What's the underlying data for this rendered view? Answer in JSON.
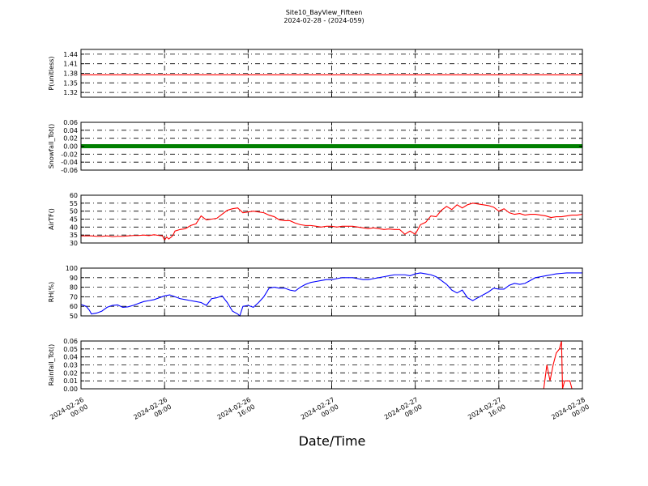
{
  "figure": {
    "title": "Site10_BayView_Fifteen",
    "subtitle": "2024-02-28 - (2024-059)",
    "xlabel": "Date/Time",
    "x_ticks": [
      "2024-02-26\n00:00",
      "2024-02-26\n08:00",
      "2024-02-26\n16:00",
      "2024-02-27\n00:00",
      "2024-02-27\n08:00",
      "2024-02-27\n16:00",
      "2024-02-28\n00:00"
    ]
  },
  "chart_data": [
    {
      "type": "line",
      "ylabel": "P(unitless)",
      "ylim": [
        1.305,
        1.455
      ],
      "yticks": [
        1.32,
        1.35,
        1.38,
        1.41,
        1.44
      ],
      "color": "#ff0000",
      "x_hours": [
        0,
        48
      ],
      "values": [
        1.375,
        1.375
      ],
      "grid": true
    },
    {
      "type": "scatter",
      "ylabel": "Snowfall_Tot()",
      "ylim": [
        -0.06,
        0.06
      ],
      "yticks": [
        -0.06,
        -0.04,
        -0.02,
        0.0,
        0.02,
        0.04,
        0.06
      ],
      "color": "#008000",
      "x_range_hours": [
        0,
        48
      ],
      "constant_value": 0.0,
      "grid": true
    },
    {
      "type": "line",
      "ylabel": "AirTF()",
      "ylim": [
        30,
        60
      ],
      "yticks": [
        30,
        35,
        40,
        45,
        50,
        55,
        60
      ],
      "color": "#ff0000",
      "grid": true,
      "x_hours": [
        0,
        0.5,
        1,
        1.5,
        2,
        2.5,
        3,
        3.5,
        4,
        4.5,
        5,
        5.5,
        6,
        6.5,
        7,
        7.5,
        7.8,
        8.0,
        8.2,
        8.4,
        8.6,
        8.8,
        9,
        9.5,
        10,
        10.5,
        11,
        11.5,
        12,
        12.5,
        13,
        13.5,
        14,
        14.5,
        15,
        15.5,
        16,
        16.5,
        17,
        17.5,
        18,
        18.5,
        19,
        19.5,
        20,
        20.5,
        21,
        21.5,
        22,
        22.5,
        23,
        23.5,
        24,
        24.5,
        25,
        25.5,
        26,
        26.5,
        27,
        27.5,
        28,
        28.5,
        29,
        29.5,
        30,
        30.5,
        31,
        31.5,
        32,
        32.5,
        33,
        33.5,
        34,
        34.5,
        35,
        35.5,
        36,
        36.5,
        37,
        37.5,
        38,
        38.5,
        39,
        39.5,
        40,
        40.5,
        41,
        41.5,
        42,
        42.5,
        43,
        43.5,
        44,
        44.5,
        45,
        45.5,
        46,
        46.5,
        47,
        47.5,
        48
      ],
      "values": [
        34.5,
        34.5,
        34.5,
        34.2,
        34.2,
        34.5,
        34.0,
        34.2,
        34.2,
        34.5,
        34.7,
        34.7,
        35.0,
        34.7,
        35.2,
        34.7,
        34.5,
        31.8,
        33.8,
        32.5,
        33.5,
        34.8,
        37.5,
        38.5,
        39.0,
        41.0,
        42.0,
        47.0,
        44.5,
        45.0,
        45.5,
        48.0,
        50.5,
        51.5,
        52.0,
        49.0,
        49.5,
        50.0,
        49.5,
        49.0,
        47.5,
        46.5,
        44.5,
        44.0,
        44.0,
        42.5,
        41.5,
        41.0,
        41.0,
        40.5,
        40.0,
        40.5,
        40.5,
        40.0,
        40.5,
        40.5,
        40.5,
        40.0,
        39.5,
        39.0,
        39.5,
        39.0,
        38.5,
        38.8,
        38.5,
        38.5,
        35.5,
        37.5,
        35.5,
        41.5,
        43.0,
        47.0,
        46.5,
        50.5,
        53.0,
        51.0,
        54.0,
        52.0,
        54.0,
        55.0,
        54.5,
        54.0,
        53.5,
        52.5,
        50.0,
        51.5,
        49.0,
        48.0,
        48.5,
        47.5,
        48.0,
        48.0,
        47.5,
        47.0,
        46.0,
        46.5,
        46.5,
        47.0,
        47.5,
        47.5,
        48.0
      ]
    },
    {
      "type": "line",
      "ylabel": "RH(%)",
      "ylim": [
        50,
        100
      ],
      "yticks": [
        50,
        60,
        70,
        80,
        90,
        100
      ],
      "color": "#0000ff",
      "grid": true,
      "x_hours": [
        0,
        0.5,
        0.8,
        1,
        1.5,
        2,
        2.5,
        3,
        3.5,
        4,
        4.5,
        5,
        5.5,
        6,
        6.5,
        7,
        7.5,
        8,
        8.5,
        9,
        9.5,
        10,
        10.5,
        11,
        11.5,
        12,
        12.5,
        13,
        13.5,
        14,
        14.5,
        15,
        15.2,
        15.5,
        16,
        16.5,
        17,
        17.5,
        18,
        18.5,
        19,
        19.5,
        20,
        20.5,
        21,
        21.5,
        22,
        22.5,
        23,
        23.5,
        24,
        24.5,
        25,
        25.5,
        26,
        26.5,
        27,
        27.5,
        28,
        28.5,
        29,
        29.5,
        30,
        30.5,
        31,
        31.5,
        32,
        32.5,
        33,
        33.5,
        34,
        34.5,
        35,
        35.5,
        36,
        36.5,
        37,
        37.5,
        38,
        38.5,
        39,
        39.5,
        40,
        40.5,
        41,
        41.5,
        42,
        42.5,
        43,
        43.5,
        44,
        44.5,
        45,
        45.5,
        46,
        46.5,
        47,
        47.5,
        48
      ],
      "values": [
        62,
        60,
        56,
        52,
        53,
        55,
        59,
        61,
        61.5,
        59,
        59.5,
        61,
        63,
        65,
        66,
        67,
        69,
        71,
        72,
        70,
        68,
        67,
        66,
        65,
        64,
        61,
        68,
        69,
        71,
        64,
        55,
        52,
        50,
        60,
        61,
        59,
        64,
        70,
        79,
        80,
        79,
        79,
        77,
        76,
        80,
        83,
        85,
        86,
        87,
        88,
        88,
        89,
        90,
        90,
        90,
        89,
        88,
        88,
        89,
        90,
        91,
        92,
        93,
        93,
        93,
        92,
        94,
        95,
        94,
        93,
        91,
        87,
        83,
        77,
        74,
        77,
        69,
        66,
        69,
        72,
        75,
        79,
        78,
        78,
        82,
        84,
        83,
        84,
        87,
        90,
        91,
        92,
        93,
        94,
        94.5,
        95,
        95,
        95,
        95
      ]
    },
    {
      "type": "line",
      "ylabel": "Rainfall_Tot()",
      "ylim": [
        0,
        0.06
      ],
      "yticks": [
        0.0,
        0.01,
        0.02,
        0.03,
        0.04,
        0.05,
        0.06
      ],
      "color": "#ff0000",
      "grid": true,
      "x_hours": [
        0,
        44.3,
        44.6,
        44.9,
        45.2,
        45.5,
        45.8,
        46.0,
        46.1,
        46.3,
        46.5,
        46.8,
        47.0,
        47.2,
        48.0
      ],
      "values": [
        0,
        0,
        0.03,
        0.01,
        0.03,
        0.045,
        0.05,
        0.06,
        0.0,
        0.01,
        0.01,
        0.01,
        0.0,
        0.0,
        0.0
      ]
    }
  ]
}
